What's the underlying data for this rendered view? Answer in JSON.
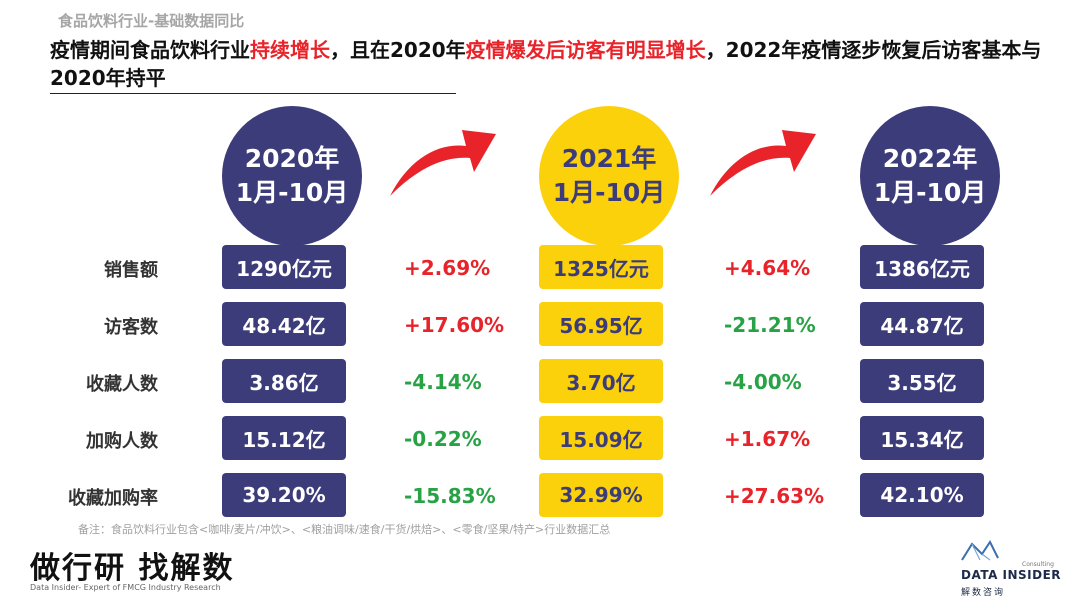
{
  "header": {
    "subtitle": "食品饮料行业-基础数据同比",
    "title_parts": [
      "疫情期间食品饮料行业",
      "持续增长",
      "，且在2020年",
      "疫情爆发后访客有明显增长",
      "，2022年疫情逐步恢复后访客基本与2020年持平"
    ]
  },
  "periods": [
    {
      "year": "2020年",
      "range": "1月-10月",
      "color": "navy"
    },
    {
      "year": "2021年",
      "range": "1月-10月",
      "color": "gold"
    },
    {
      "year": "2022年",
      "range": "1月-10月",
      "color": "navy"
    }
  ],
  "arrow_color": "#e8232a",
  "rows": [
    {
      "label": "销售额",
      "v2020": "1290亿元",
      "c1": "+2.69%",
      "v2021": "1325亿元",
      "c2": "+4.64%",
      "v2022": "1386亿元"
    },
    {
      "label": "访客数",
      "v2020": "48.42亿",
      "c1": "+17.60%",
      "v2021": "56.95亿",
      "c2": "-21.21%",
      "v2022": "44.87亿"
    },
    {
      "label": "收藏人数",
      "v2020": "3.86亿",
      "c1": "-4.14%",
      "v2021": "3.70亿",
      "c2": "-4.00%",
      "v2022": "3.55亿"
    },
    {
      "label": "加购人数",
      "v2020": "15.12亿",
      "c1": "-0.22%",
      "v2021": "15.09亿",
      "c2": "+1.67%",
      "v2022": "15.34亿"
    },
    {
      "label": "收藏加购率",
      "v2020": "39.20%",
      "c1": "-15.83%",
      "v2021": "32.99%",
      "c2": "+27.63%",
      "v2022": "42.10%"
    }
  ],
  "colors": {
    "navy": "#3d3c7a",
    "gold": "#fbd10b",
    "up": "#e8232a",
    "down": "#27a244"
  },
  "footnote": "备注：食品饮料行业包含<咖啡/麦片/冲饮>、<粮油调味/速食/干货/烘焙>、<零食/坚果/特产>行业数据汇总",
  "brand": {
    "cn": "做行研 找解数",
    "en": "Data Insider- Expert of FMCG Industry Research",
    "logo_consulting": "Consulting",
    "logo_name": "DATA INSIDER",
    "logo_cn": "解数咨询"
  }
}
